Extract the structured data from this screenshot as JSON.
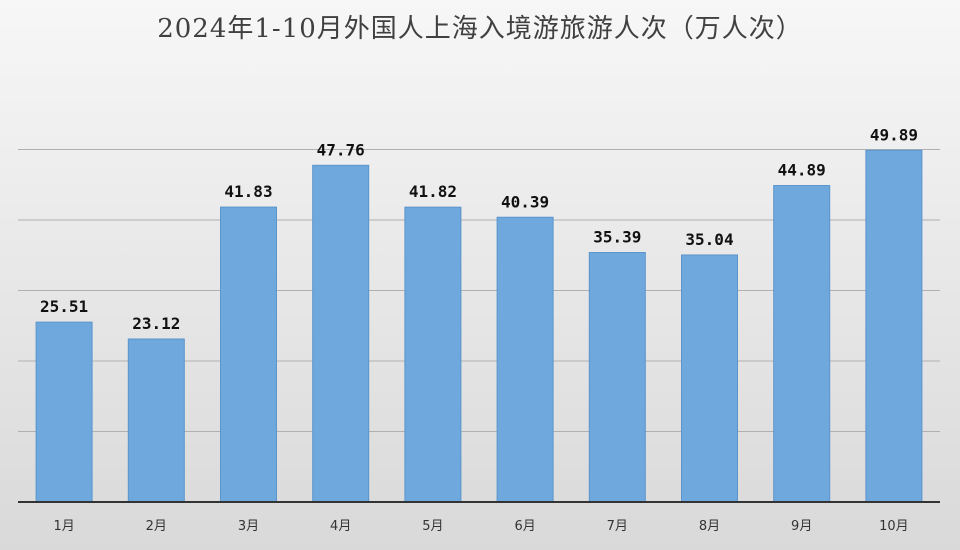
{
  "chart_data": {
    "type": "bar",
    "title": "2024年1-10月外国人上海入境游旅游人次（万人次）",
    "xlabel": "",
    "ylabel": "",
    "categories": [
      "1月",
      "2月",
      "3月",
      "4月",
      "5月",
      "6月",
      "7月",
      "8月",
      "9月",
      "10月"
    ],
    "values": [
      25.51,
      23.12,
      41.83,
      47.76,
      41.82,
      40.39,
      35.39,
      35.04,
      44.89,
      49.89
    ],
    "value_labels": [
      "25.51",
      "23.12",
      "41.83",
      "47.76",
      "41.82",
      "40.39",
      "35.39",
      "35.04",
      "44.89",
      "49.89"
    ],
    "ylim": [
      0,
      60
    ],
    "y_gridlines": [
      10,
      20,
      30,
      40,
      50
    ],
    "grid": true,
    "legend": "none",
    "colors": {
      "bar": "#6fa8dc",
      "bar_edge": "#5b95cc",
      "gridline": "#b0b0b0",
      "axis": "#333333"
    }
  }
}
